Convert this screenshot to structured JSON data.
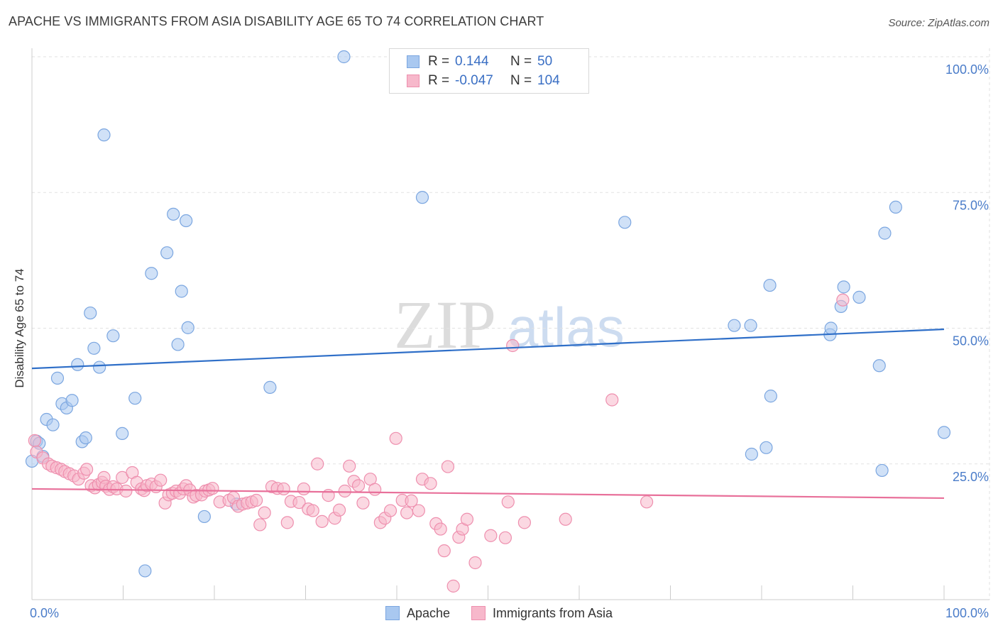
{
  "title": "APACHE VS IMMIGRANTS FROM ASIA DISABILITY AGE 65 TO 74 CORRELATION CHART",
  "source": "Source: ZipAtlas.com",
  "watermark": {
    "zip": "ZIP",
    "atlas": "atlas"
  },
  "legend": {
    "rows": [
      {
        "r_label": "R =",
        "r_value": "0.144",
        "n_label": "N =",
        "n_value": "50",
        "color": "#a9c8f0",
        "border": "#7ba6e0"
      },
      {
        "r_label": "R =",
        "r_value": "-0.047",
        "n_label": "N =",
        "n_value": "104",
        "color": "#f7b8cb",
        "border": "#ee8fae"
      }
    ]
  },
  "bottom_legend": [
    {
      "label": "Apache",
      "color": "#a9c8f0",
      "border": "#7ba6e0"
    },
    {
      "label": "Immigrants from Asia",
      "color": "#f7b8cb",
      "border": "#ee8fae"
    }
  ],
  "chart_data": {
    "type": "scatter",
    "title": "APACHE VS IMMIGRANTS FROM ASIA DISABILITY AGE 65 TO 74 CORRELATION CHART",
    "xlabel": "",
    "ylabel": "Disability Age 65 to 74",
    "xlim": [
      0,
      100
    ],
    "ylim": [
      0,
      100
    ],
    "x_ticks": [
      "0.0%",
      "100.0%"
    ],
    "y_ticks": [
      {
        "value": 25,
        "label": "25.0%"
      },
      {
        "value": 50,
        "label": "50.0%"
      },
      {
        "value": 75,
        "label": "75.0%"
      },
      {
        "value": 100,
        "label": "100.0%"
      }
    ],
    "grid": true,
    "legend_position": "top-center",
    "series": [
      {
        "name": "Apache",
        "color": "#a9c8f0",
        "stroke": "#7ba6e0",
        "line_color": "#2f6fc8",
        "trend": [
          [
            0,
            42.6
          ],
          [
            100,
            49.8
          ]
        ],
        "points": [
          [
            0,
            25.5
          ],
          [
            0.5,
            29.2
          ],
          [
            0.8,
            28.8
          ],
          [
            1.2,
            26.4
          ],
          [
            1.6,
            33.2
          ],
          [
            2.3,
            32.2
          ],
          [
            2.8,
            40.8
          ],
          [
            3.3,
            36.1
          ],
          [
            3.8,
            35.3
          ],
          [
            4.4,
            36.7
          ],
          [
            5.0,
            43.3
          ],
          [
            5.5,
            29.1
          ],
          [
            5.9,
            29.8
          ],
          [
            6.4,
            52.8
          ],
          [
            6.8,
            46.3
          ],
          [
            7.4,
            42.8
          ],
          [
            7.9,
            85.6
          ],
          [
            8.9,
            48.6
          ],
          [
            9.9,
            30.6
          ],
          [
            11.3,
            37.1
          ],
          [
            12.4,
            5.3
          ],
          [
            13.1,
            60.1
          ],
          [
            14.8,
            63.9
          ],
          [
            15.5,
            71.0
          ],
          [
            16.0,
            47.0
          ],
          [
            16.4,
            56.8
          ],
          [
            16.9,
            69.8
          ],
          [
            17.1,
            50.1
          ],
          [
            18.9,
            15.3
          ],
          [
            22.4,
            17.6
          ],
          [
            26.1,
            39.1
          ],
          [
            34.2,
            100.0
          ],
          [
            42.8,
            74.1
          ],
          [
            65.0,
            69.5
          ],
          [
            77.0,
            50.5
          ],
          [
            78.8,
            50.5
          ],
          [
            78.9,
            26.8
          ],
          [
            80.5,
            28.0
          ],
          [
            80.9,
            57.9
          ],
          [
            81.0,
            37.5
          ],
          [
            87.5,
            48.8
          ],
          [
            87.6,
            50.0
          ],
          [
            88.7,
            54.0
          ],
          [
            89.0,
            57.6
          ],
          [
            90.7,
            55.7
          ],
          [
            92.9,
            43.1
          ],
          [
            93.2,
            23.8
          ],
          [
            93.5,
            67.5
          ],
          [
            94.7,
            72.3
          ],
          [
            100.0,
            30.8
          ]
        ]
      },
      {
        "name": "Immigrants from Asia",
        "color": "#f7b8cb",
        "stroke": "#ee8fae",
        "line_color": "#e8709a",
        "trend": [
          [
            0,
            20.4
          ],
          [
            100,
            18.7
          ]
        ],
        "points": [
          [
            0.3,
            29.3
          ],
          [
            0.5,
            27.2
          ],
          [
            1.2,
            26.1
          ],
          [
            1.8,
            25.0
          ],
          [
            2.2,
            24.6
          ],
          [
            2.7,
            24.3
          ],
          [
            3.2,
            24.0
          ],
          [
            3.6,
            23.6
          ],
          [
            4.1,
            23.2
          ],
          [
            4.6,
            22.8
          ],
          [
            5.1,
            22.2
          ],
          [
            5.7,
            23.3
          ],
          [
            6.0,
            24.0
          ],
          [
            6.5,
            21.0
          ],
          [
            6.9,
            20.6
          ],
          [
            7.3,
            21.2
          ],
          [
            7.7,
            21.6
          ],
          [
            7.9,
            22.5
          ],
          [
            8.1,
            20.9
          ],
          [
            8.5,
            20.3
          ],
          [
            8.9,
            20.8
          ],
          [
            9.3,
            20.4
          ],
          [
            9.9,
            22.5
          ],
          [
            10.3,
            20.0
          ],
          [
            11.0,
            23.4
          ],
          [
            11.5,
            21.6
          ],
          [
            12.0,
            20.4
          ],
          [
            12.3,
            20.1
          ],
          [
            12.6,
            21.0
          ],
          [
            13.1,
            21.3
          ],
          [
            13.6,
            20.8
          ],
          [
            14.1,
            22.0
          ],
          [
            14.6,
            17.8
          ],
          [
            15.0,
            19.3
          ],
          [
            15.4,
            19.6
          ],
          [
            15.8,
            20.0
          ],
          [
            16.2,
            19.6
          ],
          [
            16.6,
            20.4
          ],
          [
            16.9,
            21.0
          ],
          [
            17.3,
            20.2
          ],
          [
            17.7,
            18.9
          ],
          [
            18.0,
            19.2
          ],
          [
            18.6,
            19.3
          ],
          [
            19.0,
            20.0
          ],
          [
            19.4,
            20.2
          ],
          [
            19.8,
            20.5
          ],
          [
            20.6,
            18.0
          ],
          [
            21.6,
            18.3
          ],
          [
            22.1,
            18.8
          ],
          [
            22.6,
            17.2
          ],
          [
            23.1,
            17.6
          ],
          [
            23.6,
            17.8
          ],
          [
            24.1,
            18.0
          ],
          [
            24.6,
            18.3
          ],
          [
            25.0,
            13.8
          ],
          [
            25.5,
            16.0
          ],
          [
            26.3,
            20.8
          ],
          [
            26.9,
            20.5
          ],
          [
            27.6,
            20.4
          ],
          [
            28.0,
            14.2
          ],
          [
            28.4,
            18.1
          ],
          [
            29.3,
            17.9
          ],
          [
            29.8,
            20.4
          ],
          [
            30.3,
            16.7
          ],
          [
            30.8,
            16.4
          ],
          [
            31.3,
            25.0
          ],
          [
            31.8,
            14.4
          ],
          [
            32.5,
            19.2
          ],
          [
            33.2,
            15.0
          ],
          [
            33.7,
            16.5
          ],
          [
            34.3,
            20.0
          ],
          [
            34.8,
            24.6
          ],
          [
            35.3,
            21.8
          ],
          [
            35.8,
            21.0
          ],
          [
            36.3,
            17.8
          ],
          [
            37.1,
            22.2
          ],
          [
            37.6,
            20.3
          ],
          [
            38.2,
            14.2
          ],
          [
            38.7,
            15.0
          ],
          [
            39.3,
            16.4
          ],
          [
            39.9,
            29.7
          ],
          [
            40.6,
            18.3
          ],
          [
            41.1,
            16.0
          ],
          [
            41.6,
            18.2
          ],
          [
            42.4,
            16.4
          ],
          [
            42.8,
            22.2
          ],
          [
            43.7,
            21.4
          ],
          [
            44.3,
            14.0
          ],
          [
            44.8,
            13.0
          ],
          [
            45.2,
            9.0
          ],
          [
            45.6,
            24.5
          ],
          [
            46.2,
            2.5
          ],
          [
            46.8,
            11.5
          ],
          [
            47.2,
            13.0
          ],
          [
            47.7,
            14.8
          ],
          [
            48.6,
            6.8
          ],
          [
            50.3,
            11.8
          ],
          [
            51.9,
            11.4
          ],
          [
            52.2,
            18.0
          ],
          [
            52.7,
            46.8
          ],
          [
            54.0,
            14.2
          ],
          [
            58.5,
            14.8
          ],
          [
            63.6,
            36.8
          ],
          [
            67.4,
            18.0
          ],
          [
            88.9,
            55.2
          ]
        ]
      }
    ]
  }
}
